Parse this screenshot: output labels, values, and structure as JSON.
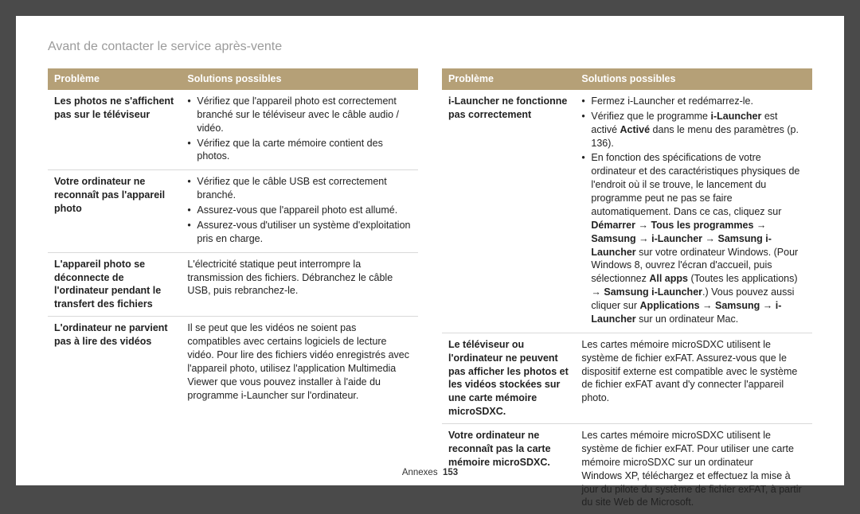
{
  "title": "Avant de contacter le service après-vente",
  "header_bg": "#b5a077",
  "headers": {
    "problem": "Problème",
    "solutions": "Solutions possibles"
  },
  "footer": {
    "section": "Annexes",
    "page": "153"
  },
  "left": [
    {
      "problem": "Les photos ne s'affichent pas sur le téléviseur",
      "solutions_list": [
        "Vérifiez que l'appareil photo est correctement branché sur le téléviseur avec le câble audio / vidéo.",
        "Vérifiez que la carte mémoire contient des photos."
      ]
    },
    {
      "problem": "Votre ordinateur ne reconnaît pas l'appareil photo",
      "solutions_list": [
        "Vérifiez que le câble USB est correctement branché.",
        "Assurez-vous que l'appareil photo est allumé.",
        "Assurez-vous d'utiliser un système d'exploitation pris en charge."
      ]
    },
    {
      "problem": "L'appareil photo se déconnecte de l'ordinateur pendant le transfert des fichiers",
      "solutions_text": "L'électricité statique peut interrompre la transmission des fichiers. Débranchez le câble USB, puis rebranchez-le."
    },
    {
      "problem": "L'ordinateur ne parvient pas à lire des vidéos",
      "solutions_text": "Il se peut que les vidéos ne soient pas compatibles avec certains logiciels de lecture vidéo. Pour lire des fichiers vidéo enregistrés avec l'appareil photo, utilisez l'application Multimedia Viewer que vous pouvez installer à l'aide du programme i-Launcher sur l'ordinateur."
    }
  ],
  "right": [
    {
      "problem": "i-Launcher ne fonctionne pas correctement",
      "solutions_html": "<ul class=\"bullets\"><li>Fermez i-Launcher et redémarrez-le.</li><li>Vérifiez que le programme <span class=\"b\">i-Launcher</span> est activé <span class=\"b\">Activé</span> dans le menu des paramètres (p. 136).</li><li>En fonction des spécifications de votre ordinateur et des caractéristiques physiques de l'endroit où il se trouve, le lancement du programme peut ne pas se faire automatiquement. Dans ce cas, cliquez sur <span class=\"b\">Démarrer</span> <span class=\"arrow\">→</span> <span class=\"b\">Tous les programmes</span> <span class=\"arrow\">→</span> <span class=\"b\">Samsung</span> <span class=\"arrow\">→</span> <span class=\"b\">i-Launcher</span> <span class=\"arrow\">→</span> <span class=\"b\">Samsung i-Launcher</span> sur votre ordinateur Windows. (Pour Windows 8, ouvrez l'écran d'accueil, puis sélectionnez <span class=\"b\">All apps</span> (Toutes les applications) <span class=\"arrow\">→</span> <span class=\"b\">Samsung i-Launcher</span>.) Vous pouvez aussi cliquer sur <span class=\"b\">Applications</span> <span class=\"arrow\">→</span> <span class=\"b\">Samsung</span> <span class=\"arrow\">→</span> <span class=\"b\">i-Launcher</span> sur un ordinateur Mac.</li></ul>"
    },
    {
      "problem": "Le téléviseur ou l'ordinateur ne peuvent pas afficher les photos et les vidéos stockées sur une carte mémoire microSDXC.",
      "solutions_text": "Les cartes mémoire microSDXC utilisent le système de fichier exFAT. Assurez-vous que le dispositif externe est compatible avec le système de fichier exFAT avant d'y connecter l'appareil photo."
    },
    {
      "problem": "Votre ordinateur ne reconnaît pas la carte mémoire microSDXC.",
      "solutions_text": "Les cartes mémoire microSDXC utilisent le système de fichier exFAT. Pour utiliser une carte mémoire microSDXC sur un ordinateur\nWindows XP, téléchargez et effectuez la mise à jour du pilote du système de fichier exFAT, à partir du site Web de Microsoft."
    }
  ]
}
